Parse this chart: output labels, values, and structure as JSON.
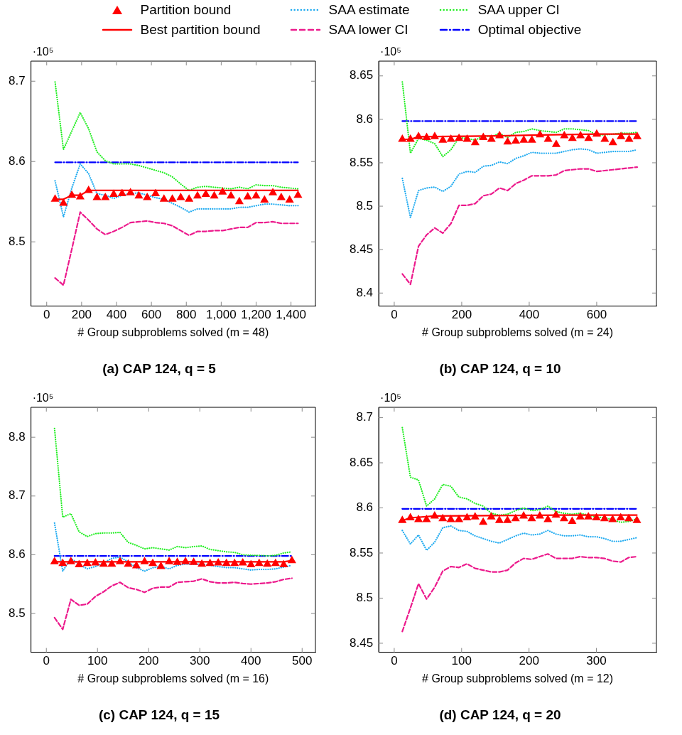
{
  "chart_data": [
    {
      "type": "line",
      "title": "(a) CAP 124, q = 5",
      "xlabel": "# Group subproblems solved (m = 48)",
      "ylabel": "·10⁵",
      "legend": "top",
      "x": [
        48,
        96,
        144,
        192,
        240,
        288,
        336,
        384,
        432,
        480,
        528,
        576,
        624,
        672,
        720,
        768,
        816,
        864,
        912,
        960,
        1008,
        1056,
        1104,
        1152,
        1200,
        1248,
        1296,
        1344,
        1392,
        1440
      ],
      "xlim": [
        -90,
        1540
      ],
      "xticks": [
        0,
        200,
        400,
        600,
        800,
        {
          "value": 1000,
          "label": "1,000"
        },
        {
          "value": 1200,
          "label": "1,200"
        },
        {
          "value": 1400,
          "label": "1,400"
        }
      ],
      "ylim": [
        8.42,
        8.725
      ],
      "yticks": [
        8.5,
        8.6,
        8.7
      ],
      "series": [
        {
          "name": "Partition bound",
          "type": "scatter",
          "marker": "triangle",
          "color": "#ff0000",
          "values": [
            8.553,
            8.548,
            8.558,
            8.556,
            8.564,
            8.555,
            8.555,
            8.559,
            8.56,
            8.561,
            8.557,
            8.555,
            8.56,
            8.553,
            8.553,
            8.555,
            8.553,
            8.557,
            8.559,
            8.557,
            8.562,
            8.557,
            8.55,
            8.556,
            8.557,
            8.552,
            8.561,
            8.555,
            8.552,
            8.558
          ]
        },
        {
          "name": "Best partition bound",
          "type": "line",
          "line_style": "solid",
          "color": "#ff0000",
          "x": [
            48,
            96,
            144,
            192,
            240,
            1440
          ],
          "values": [
            8.553,
            8.553,
            8.558,
            8.558,
            8.564,
            8.564
          ]
        },
        {
          "name": "SAA estimate",
          "type": "line",
          "line_style": "dotted",
          "color": "#1eaaf0",
          "values": [
            8.576,
            8.531,
            8.567,
            8.597,
            8.585,
            8.56,
            8.558,
            8.554,
            8.558,
            8.56,
            8.561,
            8.558,
            8.555,
            8.553,
            8.548,
            8.543,
            8.537,
            8.541,
            8.541,
            8.541,
            8.541,
            8.541,
            8.543,
            8.543,
            8.545,
            8.547,
            8.547,
            8.546,
            8.545,
            8.545
          ]
        },
        {
          "name": "SAA lower CI",
          "type": "line",
          "line_style": "dashed",
          "color": "#ec1a8c",
          "values": [
            8.455,
            8.446,
            8.491,
            8.537,
            8.527,
            8.516,
            8.509,
            8.513,
            8.518,
            8.524,
            8.525,
            8.526,
            8.524,
            8.523,
            8.52,
            8.514,
            8.508,
            8.513,
            8.513,
            8.514,
            8.514,
            8.516,
            8.518,
            8.518,
            8.524,
            8.524,
            8.525,
            8.523,
            8.523,
            8.523
          ]
        },
        {
          "name": "SAA upper CI",
          "type": "line",
          "line_style": "dotted",
          "color": "#22ee22",
          "values": [
            8.699,
            8.615,
            8.638,
            8.661,
            8.641,
            8.612,
            8.601,
            8.597,
            8.597,
            8.597,
            8.595,
            8.592,
            8.589,
            8.586,
            8.581,
            8.572,
            8.564,
            8.568,
            8.569,
            8.568,
            8.567,
            8.566,
            8.568,
            8.566,
            8.571,
            8.57,
            8.57,
            8.568,
            8.567,
            8.566
          ]
        },
        {
          "name": "Optimal objective",
          "type": "line",
          "line_style": "dashdot",
          "color": "#0000ff",
          "x": [
            48,
            1440
          ],
          "values": [
            8.599,
            8.599
          ]
        }
      ]
    },
    {
      "type": "line",
      "title": "(b) CAP 124, q = 10",
      "xlabel": "# Group subproblems solved (m = 24)",
      "ylabel": "·10⁵",
      "x": [
        24,
        48,
        72,
        96,
        120,
        144,
        168,
        192,
        216,
        240,
        264,
        288,
        312,
        336,
        360,
        384,
        408,
        432,
        456,
        480,
        504,
        528,
        552,
        576,
        600,
        624,
        648,
        672,
        696,
        720
      ],
      "xlim": [
        -46,
        777
      ],
      "xticks": [
        0,
        200,
        400,
        600
      ],
      "ylim": [
        8.385,
        8.667
      ],
      "yticks": [
        8.4,
        8.45,
        8.5,
        8.55,
        8.6,
        8.65
      ],
      "series": [
        {
          "type": "scatter",
          "marker": "triangle",
          "color": "#ff0000",
          "values": [
            8.577,
            8.577,
            8.58,
            8.579,
            8.58,
            8.576,
            8.577,
            8.578,
            8.577,
            8.573,
            8.579,
            8.577,
            8.581,
            8.574,
            8.575,
            8.576,
            8.576,
            8.582,
            8.577,
            8.571,
            8.581,
            8.578,
            8.581,
            8.578,
            8.583,
            8.577,
            8.573,
            8.58,
            8.577,
            8.58
          ]
        },
        {
          "type": "line",
          "line_style": "solid",
          "color": "#ff0000",
          "x": [
            24,
            48,
            72,
            312,
            432,
            600,
            720
          ],
          "values": [
            8.577,
            8.577,
            8.58,
            8.581,
            8.582,
            8.583,
            8.583
          ]
        },
        {
          "type": "line",
          "line_style": "dotted",
          "color": "#1eaaf0",
          "values": [
            8.532,
            8.487,
            8.518,
            8.521,
            8.522,
            8.517,
            8.523,
            8.537,
            8.54,
            8.539,
            8.546,
            8.547,
            8.551,
            8.549,
            8.555,
            8.558,
            8.562,
            8.561,
            8.561,
            8.561,
            8.563,
            8.565,
            8.566,
            8.565,
            8.561,
            8.562,
            8.563,
            8.563,
            8.563,
            8.565
          ]
        },
        {
          "type": "line",
          "line_style": "dashed",
          "color": "#ec1a8c",
          "values": [
            8.422,
            8.41,
            8.454,
            8.467,
            8.475,
            8.469,
            8.48,
            8.501,
            8.501,
            8.503,
            8.512,
            8.514,
            8.521,
            8.518,
            8.526,
            8.53,
            8.535,
            8.535,
            8.535,
            8.536,
            8.541,
            8.542,
            8.543,
            8.543,
            8.54,
            8.541,
            8.542,
            8.543,
            8.544,
            8.545
          ]
        },
        {
          "type": "line",
          "line_style": "dotted",
          "color": "#22ee22",
          "values": [
            8.643,
            8.561,
            8.578,
            8.576,
            8.572,
            8.557,
            8.565,
            8.579,
            8.578,
            8.576,
            8.581,
            8.58,
            8.584,
            8.579,
            8.585,
            8.586,
            8.589,
            8.587,
            8.586,
            8.585,
            8.589,
            8.589,
            8.588,
            8.587,
            8.582,
            8.582,
            8.583,
            8.584,
            8.584,
            8.585
          ]
        },
        {
          "type": "line",
          "line_style": "dashdot",
          "color": "#0000ff",
          "x": [
            24,
            720
          ],
          "values": [
            8.598,
            8.598
          ]
        }
      ]
    },
    {
      "type": "line",
      "title": "(c) CAP 124, q = 15",
      "xlabel": "# Group subproblems solved (m = 16)",
      "ylabel": "·10⁵",
      "x": [
        16,
        32,
        48,
        64,
        80,
        96,
        112,
        128,
        144,
        160,
        176,
        192,
        208,
        224,
        240,
        256,
        272,
        288,
        304,
        320,
        336,
        352,
        368,
        384,
        400,
        416,
        432,
        448,
        464,
        480
      ],
      "xlim": [
        -30,
        526
      ],
      "xticks": [
        0,
        100,
        200,
        300,
        400,
        500
      ],
      "ylim": [
        8.434,
        8.851
      ],
      "yticks": [
        8.5,
        8.6,
        8.7,
        8.8
      ],
      "series": [
        {
          "type": "scatter",
          "marker": "triangle",
          "color": "#ff0000",
          "values": [
            8.588,
            8.585,
            8.588,
            8.583,
            8.585,
            8.586,
            8.584,
            8.584,
            8.588,
            8.584,
            8.581,
            8.588,
            8.585,
            8.58,
            8.588,
            8.587,
            8.588,
            8.587,
            8.584,
            8.585,
            8.586,
            8.585,
            8.585,
            8.586,
            8.583,
            8.585,
            8.584,
            8.585,
            8.583,
            8.59
          ]
        },
        {
          "type": "line",
          "line_style": "solid",
          "color": "#ff0000",
          "x": [
            16,
            464,
            480
          ],
          "values": [
            8.588,
            8.588,
            8.59
          ]
        },
        {
          "type": "line",
          "line_style": "dotted",
          "color": "#1eaaf0",
          "values": [
            8.654,
            8.572,
            8.594,
            8.584,
            8.576,
            8.58,
            8.586,
            8.594,
            8.596,
            8.588,
            8.578,
            8.572,
            8.578,
            8.58,
            8.576,
            8.582,
            8.584,
            8.584,
            8.584,
            8.582,
            8.58,
            8.578,
            8.578,
            8.576,
            8.574,
            8.575,
            8.575,
            8.576,
            8.579,
            8.582
          ]
        },
        {
          "type": "line",
          "line_style": "dashed",
          "color": "#ec1a8c",
          "values": [
            8.493,
            8.473,
            8.524,
            8.514,
            8.516,
            8.529,
            8.537,
            8.547,
            8.553,
            8.544,
            8.541,
            8.536,
            8.543,
            8.545,
            8.545,
            8.553,
            8.554,
            8.555,
            8.559,
            8.554,
            8.552,
            8.552,
            8.553,
            8.551,
            8.55,
            8.551,
            8.552,
            8.554,
            8.558,
            8.56
          ]
        },
        {
          "type": "line",
          "line_style": "dotted",
          "color": "#22ee22",
          "values": [
            8.815,
            8.664,
            8.67,
            8.639,
            8.631,
            8.636,
            8.637,
            8.637,
            8.638,
            8.621,
            8.616,
            8.61,
            8.612,
            8.61,
            8.608,
            8.614,
            8.612,
            8.614,
            8.615,
            8.609,
            8.607,
            8.605,
            8.604,
            8.6,
            8.599,
            8.599,
            8.598,
            8.599,
            8.603,
            8.605
          ]
        },
        {
          "type": "line",
          "line_style": "dashdot",
          "color": "#0000ff",
          "x": [
            16,
            480
          ],
          "values": [
            8.598,
            8.598
          ]
        }
      ]
    },
    {
      "type": "line",
      "title": "(d) CAP 124, q = 20",
      "xlabel": "# Group subproblems solved (m = 12)",
      "ylabel": "·10⁵",
      "x": [
        12,
        24,
        36,
        48,
        60,
        72,
        84,
        96,
        108,
        120,
        132,
        144,
        156,
        168,
        180,
        192,
        204,
        216,
        228,
        240,
        252,
        264,
        276,
        288,
        300,
        312,
        324,
        336,
        348,
        360
      ],
      "xlim": [
        -23,
        389
      ],
      "xticks": [
        0,
        100,
        200,
        300
      ],
      "ylim": [
        8.44,
        8.7115
      ],
      "yticks": [
        8.45,
        8.5,
        8.55,
        8.6,
        8.65,
        8.7
      ],
      "series": [
        {
          "type": "scatter",
          "marker": "triangle",
          "color": "#ff0000",
          "values": [
            8.586,
            8.589,
            8.587,
            8.587,
            8.591,
            8.588,
            8.587,
            8.587,
            8.589,
            8.59,
            8.584,
            8.59,
            8.586,
            8.586,
            8.588,
            8.591,
            8.588,
            8.591,
            8.587,
            8.592,
            8.588,
            8.585,
            8.59,
            8.59,
            8.589,
            8.588,
            8.587,
            8.589,
            8.588,
            8.586
          ]
        },
        {
          "type": "line",
          "line_style": "solid",
          "color": "#ff0000",
          "x": [
            12,
            24,
            60,
            240,
            360
          ],
          "values": [
            8.586,
            8.589,
            8.591,
            8.592,
            8.592
          ]
        },
        {
          "type": "line",
          "line_style": "dotted",
          "color": "#1eaaf0",
          "values": [
            8.575,
            8.56,
            8.57,
            8.553,
            8.562,
            8.578,
            8.58,
            8.575,
            8.574,
            8.569,
            8.566,
            8.563,
            8.561,
            8.565,
            8.569,
            8.572,
            8.57,
            8.571,
            8.575,
            8.571,
            8.569,
            8.569,
            8.57,
            8.568,
            8.568,
            8.566,
            8.563,
            8.563,
            8.565,
            8.567
          ]
        },
        {
          "type": "line",
          "line_style": "dashed",
          "color": "#ec1a8c",
          "values": [
            8.463,
            8.489,
            8.516,
            8.499,
            8.512,
            8.53,
            8.535,
            8.534,
            8.538,
            8.533,
            8.531,
            8.529,
            8.529,
            8.531,
            8.539,
            8.544,
            8.543,
            8.546,
            8.549,
            8.544,
            8.544,
            8.544,
            8.546,
            8.545,
            8.545,
            8.544,
            8.541,
            8.54,
            8.545,
            8.546
          ]
        },
        {
          "type": "line",
          "line_style": "dotted",
          "color": "#22ee22",
          "values": [
            8.689,
            8.634,
            8.631,
            8.602,
            8.61,
            8.626,
            8.624,
            8.612,
            8.61,
            8.605,
            8.602,
            8.594,
            8.592,
            8.593,
            8.597,
            8.6,
            8.597,
            8.598,
            8.602,
            8.596,
            8.594,
            8.593,
            8.594,
            8.592,
            8.59,
            8.589,
            8.587,
            8.584,
            8.585,
            8.588
          ]
        },
        {
          "type": "line",
          "line_style": "dashdot",
          "color": "#0000ff",
          "x": [
            12,
            360
          ],
          "values": [
            8.599,
            8.599
          ]
        }
      ]
    }
  ]
}
